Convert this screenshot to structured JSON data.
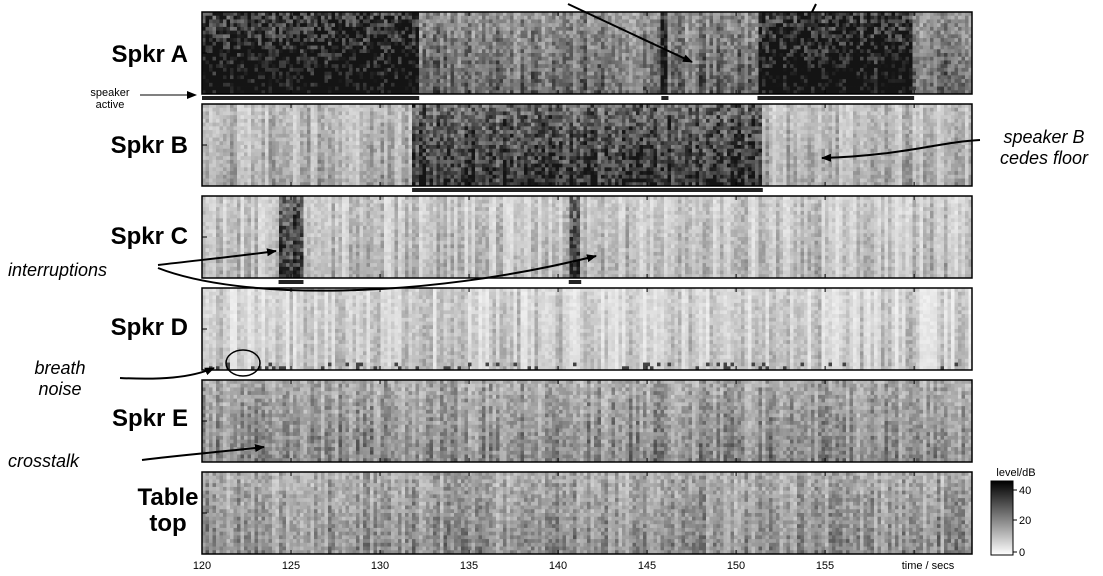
{
  "figure": {
    "panels": [
      {
        "label": "Spkr A",
        "base": 0.42,
        "seed": 11,
        "active": [
          [
            120,
            132.2
          ],
          [
            145.8,
            146.2
          ],
          [
            151.2,
            160
          ]
        ]
      },
      {
        "label": "Spkr B",
        "base": 0.18,
        "seed": 23,
        "active": [
          [
            131.8,
            151.5
          ]
        ]
      },
      {
        "label": "Spkr C",
        "base": 0.12,
        "seed": 37,
        "active": [
          [
            124.3,
            125.7
          ],
          [
            140.6,
            141.3
          ]
        ]
      },
      {
        "label": "Spkr D",
        "base": 0.08,
        "seed": 41,
        "active": []
      },
      {
        "label": "Spkr E",
        "base": 0.3,
        "seed": 53,
        "active": []
      },
      {
        "label": "Table top",
        "base": 0.28,
        "seed": 61,
        "active": []
      }
    ],
    "time_ticks": [
      "120",
      "125",
      "130",
      "135",
      "140",
      "145",
      "150",
      "155"
    ],
    "time_axis_label": "time / secs",
    "colorbar": {
      "title": "level/dB",
      "ticks": [
        "40",
        "20",
        "0"
      ],
      "min": 0,
      "max": 45
    },
    "annotations": {
      "speaker_active_line1": "speaker",
      "speaker_active_line2": "active",
      "speaker_b_line1": "speaker B",
      "speaker_b_line2": "cedes floor",
      "interruptions": "interruptions",
      "breath_line1": "breath",
      "breath_line2": "noise",
      "crosstalk": "crosstalk"
    },
    "colors": {
      "frame": "#000000",
      "background": "#ffffff",
      "activity_bar": "#222222"
    }
  }
}
